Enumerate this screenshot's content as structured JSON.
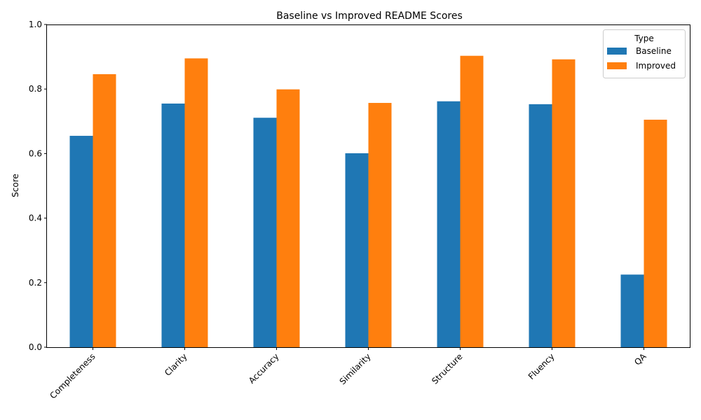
{
  "chart_data": {
    "type": "bar",
    "title": "Baseline vs Improved README Scores",
    "xlabel": "",
    "ylabel": "Score",
    "ylim": [
      0,
      1
    ],
    "yticks": [
      "0.0",
      "0.2",
      "0.4",
      "0.6",
      "0.8",
      "1.0"
    ],
    "categories": [
      "Completeness",
      "Clarity",
      "Accuracy",
      "Similarity",
      "Structure",
      "Fluency",
      "QA"
    ],
    "series": [
      {
        "name": "Baseline",
        "color": "#1f77b4",
        "values": [
          0.655,
          0.755,
          0.711,
          0.601,
          0.762,
          0.753,
          0.225
        ]
      },
      {
        "name": "Improved",
        "color": "#ff7f0e",
        "values": [
          0.846,
          0.895,
          0.799,
          0.757,
          0.903,
          0.892,
          0.705
        ]
      }
    ],
    "legend": {
      "title": "Type",
      "position": "top-right"
    },
    "grid": false
  }
}
